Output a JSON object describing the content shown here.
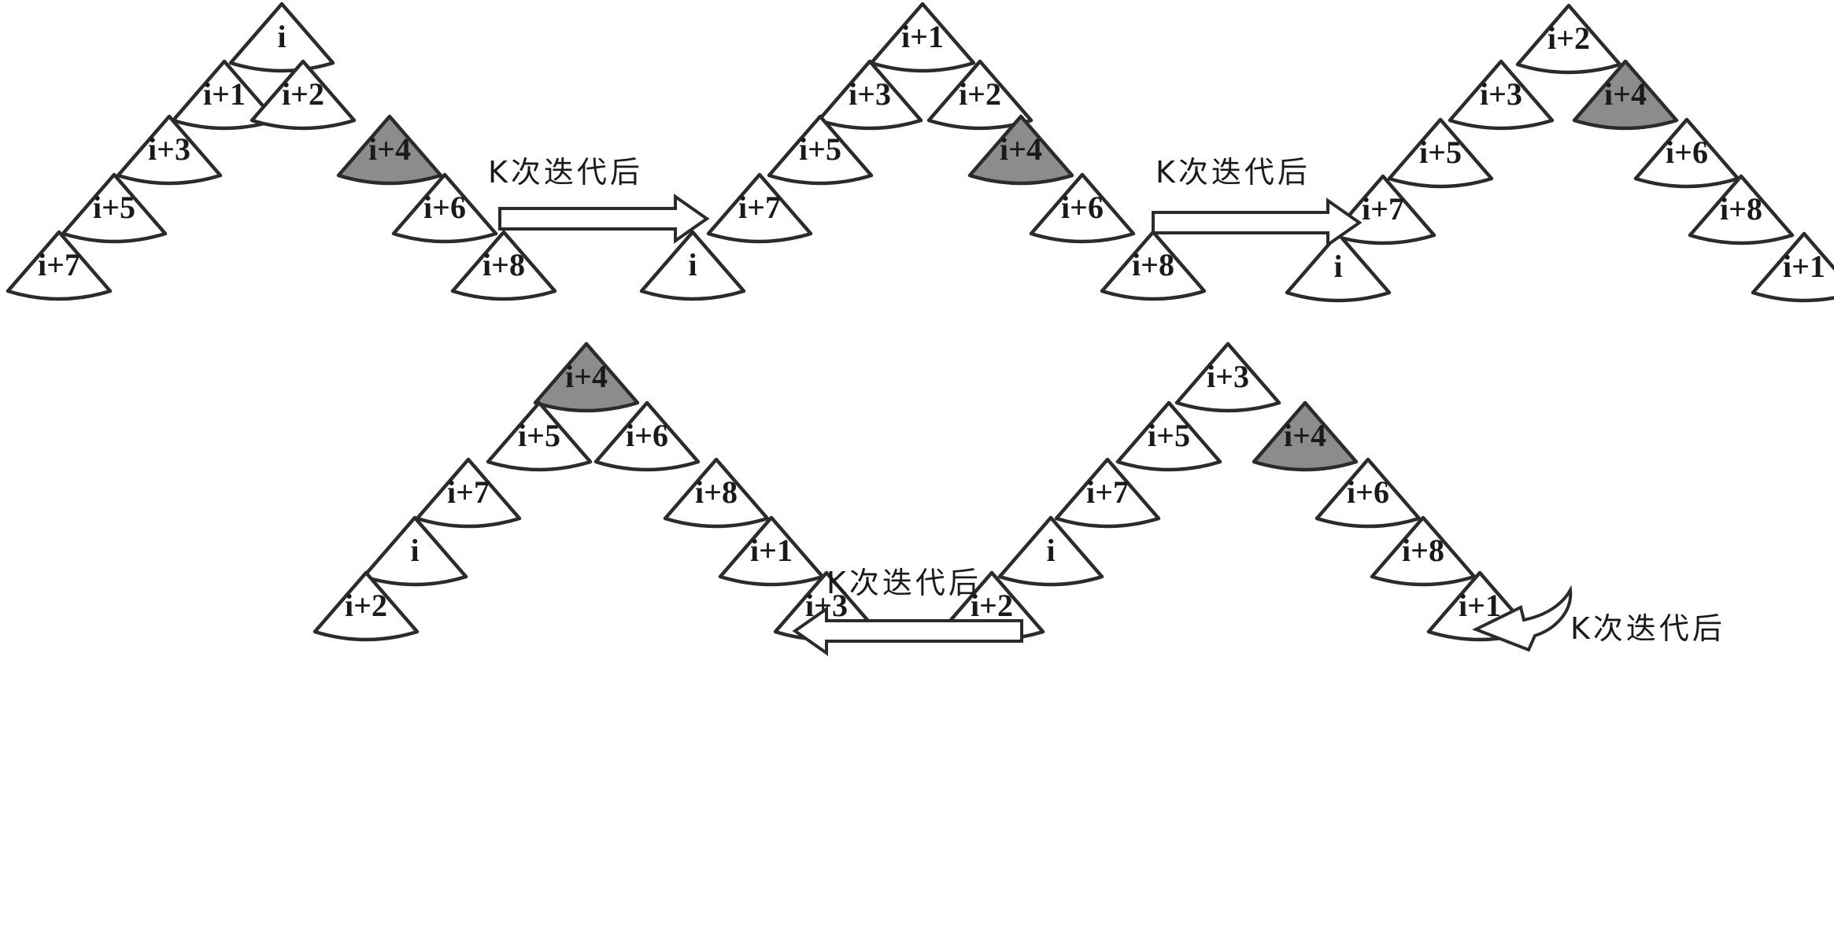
{
  "colors": {
    "normal_fill": "#ffffff",
    "highlight_fill": "#8c8c8c",
    "stroke": "#2b2b2b"
  },
  "trees": [
    {
      "id": "tree-1",
      "nodes": [
        {
          "label": "i",
          "highlight": false
        },
        {
          "label": "i+1",
          "highlight": false
        },
        {
          "label": "i+2",
          "highlight": false
        },
        {
          "label": "i+3",
          "highlight": false
        },
        {
          "label": "i+4",
          "highlight": true
        },
        {
          "label": "i+5",
          "highlight": false
        },
        {
          "label": "i+6",
          "highlight": false
        },
        {
          "label": "i+7",
          "highlight": false
        },
        {
          "label": "i+8",
          "highlight": false
        }
      ]
    },
    {
      "id": "tree-2",
      "nodes": [
        {
          "label": "i+1",
          "highlight": false
        },
        {
          "label": "i+3",
          "highlight": false
        },
        {
          "label": "i+2",
          "highlight": false
        },
        {
          "label": "i+5",
          "highlight": false
        },
        {
          "label": "i+4",
          "highlight": true
        },
        {
          "label": "i+7",
          "highlight": false
        },
        {
          "label": "i+6",
          "highlight": false
        },
        {
          "label": "i",
          "highlight": false
        },
        {
          "label": "i+8",
          "highlight": false
        }
      ]
    },
    {
      "id": "tree-3",
      "nodes": [
        {
          "label": "i+2",
          "highlight": false
        },
        {
          "label": "i+3",
          "highlight": false
        },
        {
          "label": "i+4",
          "highlight": true
        },
        {
          "label": "i+5",
          "highlight": false
        },
        {
          "label": "i+6",
          "highlight": false
        },
        {
          "label": "i+7",
          "highlight": false
        },
        {
          "label": "i+8",
          "highlight": false
        },
        {
          "label": "i",
          "highlight": false
        },
        {
          "label": "i+1",
          "highlight": false
        }
      ]
    },
    {
      "id": "tree-4",
      "nodes": [
        {
          "label": "i+3",
          "highlight": false
        },
        {
          "label": "i+5",
          "highlight": false
        },
        {
          "label": "i+4",
          "highlight": true
        },
        {
          "label": "i+7",
          "highlight": false
        },
        {
          "label": "i+6",
          "highlight": false
        },
        {
          "label": "i",
          "highlight": false
        },
        {
          "label": "i+8",
          "highlight": false
        },
        {
          "label": "i+2",
          "highlight": false
        },
        {
          "label": "i+1",
          "highlight": false
        }
      ]
    },
    {
      "id": "tree-5",
      "nodes": [
        {
          "label": "i+4",
          "highlight": true
        },
        {
          "label": "i+5",
          "highlight": false
        },
        {
          "label": "i+6",
          "highlight": false
        },
        {
          "label": "i+7",
          "highlight": false
        },
        {
          "label": "i+8",
          "highlight": false
        },
        {
          "label": "i",
          "highlight": false
        },
        {
          "label": "i+1",
          "highlight": false
        },
        {
          "label": "i+2",
          "highlight": false
        },
        {
          "label": "i+3",
          "highlight": false
        }
      ]
    }
  ],
  "arrows": [
    {
      "label": "K次迭代后",
      "direction": "right"
    },
    {
      "label": "K次迭代后",
      "direction": "right"
    },
    {
      "label": "K次迭代后",
      "direction": "curved-left"
    },
    {
      "label": "K次迭代后",
      "direction": "left"
    }
  ]
}
